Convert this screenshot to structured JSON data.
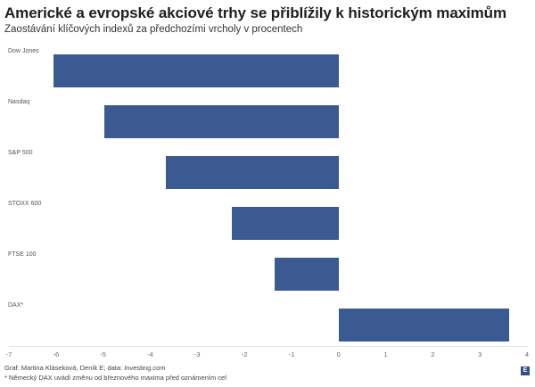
{
  "header": {
    "title": "Americké a evropské akciové trhy se přiblížily k historickým maximům",
    "subtitle": "Zaostávání klíčových indexů za předchozími vrcholy v procentech"
  },
  "footer": {
    "credit": "Graf: Martina Kláseková, Deník E; data: Investing.com",
    "note": "* Německý DAX uvádí změnu od březnového maxima před oznámením cel",
    "logo": "E"
  },
  "colors": {
    "bar": "#3b5a91"
  },
  "chart_data": {
    "type": "bar",
    "orientation": "horizontal",
    "title": "Americké a evropské akciové trhy se přiblížily k historickým maximům",
    "subtitle": "Zaostávání klíčových indexů za předchozími vrcholy v procentech",
    "categories": [
      "Dow Jones",
      "Nasdaq",
      "S&P 500",
      "STOXX 600",
      "FTSE 100",
      "DAX*"
    ],
    "values": [
      -6.05,
      -4.97,
      -3.67,
      -2.27,
      -1.35,
      3.62
    ],
    "xlabel": "",
    "ylabel": "",
    "xlim": [
      -7,
      4
    ],
    "xticks": [
      "-7",
      "-6",
      "-5",
      "-4",
      "-3",
      "-2",
      "-1",
      "0",
      "1",
      "2",
      "3",
      "4"
    ],
    "grid": false,
    "legend": null,
    "annotations": [
      "* Německý DAX uvádí změnu od březnového maxima před oznámením cel"
    ]
  }
}
